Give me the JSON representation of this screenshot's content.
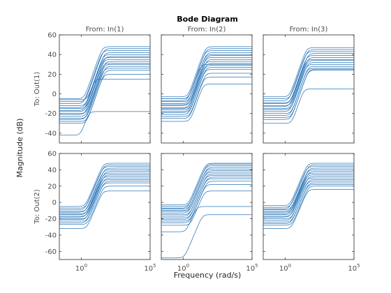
{
  "chart_data": {
    "type": "line",
    "title": "Bode Diagram",
    "xlabel": "Frequency  (rad/s)",
    "ylabel": "Magnitude (dB)",
    "xscale": "log",
    "grid": false,
    "line_color": "#1f6fb4",
    "columns": [
      "From: In(1)",
      "From: In(2)",
      "From: In(3)"
    ],
    "rows": [
      {
        "label": "To: Out(1)",
        "ylim": [
          -50,
          60
        ],
        "yticks": [
          60,
          40,
          20,
          0,
          -20,
          -40
        ]
      },
      {
        "label": "To: Out(2)",
        "ylim": [
          -70,
          60
        ],
        "yticks": [
          60,
          40,
          20,
          0,
          -20,
          -40,
          -60
        ]
      }
    ],
    "xlim_exponent": [
      -1.6,
      5
    ],
    "xticks": [
      {
        "base": "10",
        "exponent": "0",
        "value": 1
      },
      {
        "base": "10",
        "exponent": "5",
        "value": 100000
      }
    ],
    "panels": [
      {
        "row": 0,
        "col": 0,
        "curves": [
          {
            "lo": -5,
            "hi": 48,
            "wc": 1.6
          },
          {
            "lo": -8,
            "hi": 46,
            "wc": 1.9
          },
          {
            "lo": -10,
            "hi": 44,
            "wc": 1.5
          },
          {
            "lo": -12,
            "hi": 42,
            "wc": 2.1
          },
          {
            "lo": -14,
            "hi": 40,
            "wc": 1.8
          },
          {
            "lo": -15,
            "hi": 38,
            "wc": 2.3
          },
          {
            "lo": -17,
            "hi": 37,
            "wc": 1.7
          },
          {
            "lo": -18,
            "hi": 35,
            "wc": 2.0
          },
          {
            "lo": -20,
            "hi": 33,
            "wc": 2.4
          },
          {
            "lo": -21,
            "hi": 31,
            "wc": 1.9
          },
          {
            "lo": -23,
            "hi": 30,
            "wc": 2.2
          },
          {
            "lo": -25,
            "hi": 28,
            "wc": 2.5
          },
          {
            "lo": -26,
            "hi": 26,
            "wc": 2.1
          },
          {
            "lo": -28,
            "hi": 24,
            "wc": 2.6
          },
          {
            "lo": -30,
            "hi": 20,
            "wc": 2.3
          },
          {
            "lo": -6,
            "hi": 15,
            "wc": 2.8
          },
          {
            "lo": -42,
            "hi": -18,
            "wc": 0.9
          }
        ]
      },
      {
        "row": 0,
        "col": 1,
        "curves": [
          {
            "lo": -3,
            "hi": 48,
            "wc": 2.2
          },
          {
            "lo": -5,
            "hi": 46,
            "wc": 2.4
          },
          {
            "lo": -7,
            "hi": 44,
            "wc": 2.1
          },
          {
            "lo": -8,
            "hi": 42,
            "wc": 2.6
          },
          {
            "lo": -10,
            "hi": 40,
            "wc": 2.3
          },
          {
            "lo": -11,
            "hi": 39,
            "wc": 2.7
          },
          {
            "lo": -12,
            "hi": 37,
            "wc": 2.5
          },
          {
            "lo": -14,
            "hi": 35,
            "wc": 2.8
          },
          {
            "lo": -15,
            "hi": 33,
            "wc": 2.4
          },
          {
            "lo": -16,
            "hi": 31,
            "wc": 2.9
          },
          {
            "lo": -18,
            "hi": 29,
            "wc": 2.6
          },
          {
            "lo": -19,
            "hi": 27,
            "wc": 3.0
          },
          {
            "lo": -21,
            "hi": 25,
            "wc": 2.7
          },
          {
            "lo": -23,
            "hi": 21,
            "wc": 3.1
          },
          {
            "lo": -25,
            "hi": 17,
            "wc": 2.9
          },
          {
            "lo": -28,
            "hi": 10,
            "wc": 3.2
          },
          {
            "lo": -5,
            "hi": 30,
            "wc": 2.5
          }
        ]
      },
      {
        "row": 0,
        "col": 2,
        "curves": [
          {
            "lo": -3,
            "hi": 47,
            "wc": 2.0
          },
          {
            "lo": -5,
            "hi": 45,
            "wc": 2.3
          },
          {
            "lo": -7,
            "hi": 43,
            "wc": 1.9
          },
          {
            "lo": -9,
            "hi": 41,
            "wc": 2.5
          },
          {
            "lo": -10,
            "hi": 39,
            "wc": 2.2
          },
          {
            "lo": -12,
            "hi": 37,
            "wc": 2.6
          },
          {
            "lo": -13,
            "hi": 35,
            "wc": 2.1
          },
          {
            "lo": -15,
            "hi": 34,
            "wc": 2.4
          },
          {
            "lo": -16,
            "hi": 32,
            "wc": 2.7
          },
          {
            "lo": -18,
            "hi": 30,
            "wc": 2.3
          },
          {
            "lo": -20,
            "hi": 28,
            "wc": 2.8
          },
          {
            "lo": -22,
            "hi": 26,
            "wc": 2.5
          },
          {
            "lo": -24,
            "hi": 25,
            "wc": 2.9
          },
          {
            "lo": -26,
            "hi": 24,
            "wc": 2.6
          },
          {
            "lo": -30,
            "hi": 5,
            "wc": 3.0
          }
        ]
      },
      {
        "row": 1,
        "col": 0,
        "curves": [
          {
            "lo": -5,
            "hi": 48,
            "wc": 1.9
          },
          {
            "lo": -7,
            "hi": 46,
            "wc": 2.1
          },
          {
            "lo": -9,
            "hi": 44,
            "wc": 1.8
          },
          {
            "lo": -11,
            "hi": 42,
            "wc": 2.3
          },
          {
            "lo": -12,
            "hi": 40,
            "wc": 2.0
          },
          {
            "lo": -14,
            "hi": 38,
            "wc": 2.4
          },
          {
            "lo": -15,
            "hi": 36,
            "wc": 2.2
          },
          {
            "lo": -17,
            "hi": 34,
            "wc": 2.5
          },
          {
            "lo": -18,
            "hi": 32,
            "wc": 2.1
          },
          {
            "lo": -20,
            "hi": 30,
            "wc": 2.6
          },
          {
            "lo": -21,
            "hi": 28,
            "wc": 2.3
          },
          {
            "lo": -23,
            "hi": 26,
            "wc": 2.7
          },
          {
            "lo": -25,
            "hi": 24,
            "wc": 2.4
          },
          {
            "lo": -27,
            "hi": 20,
            "wc": 2.8
          },
          {
            "lo": -32,
            "hi": 14,
            "wc": 2.5
          }
        ]
      },
      {
        "row": 1,
        "col": 1,
        "curves": [
          {
            "lo": -3,
            "hi": 48,
            "wc": 2.3
          },
          {
            "lo": -5,
            "hi": 47,
            "wc": 2.5
          },
          {
            "lo": -7,
            "hi": 45,
            "wc": 2.2
          },
          {
            "lo": -8,
            "hi": 43,
            "wc": 2.7
          },
          {
            "lo": -10,
            "hi": 41,
            "wc": 2.4
          },
          {
            "lo": -11,
            "hi": 39,
            "wc": 2.8
          },
          {
            "lo": -13,
            "hi": 37,
            "wc": 2.5
          },
          {
            "lo": -15,
            "hi": 35,
            "wc": 2.9
          },
          {
            "lo": -17,
            "hi": 33,
            "wc": 2.6
          },
          {
            "lo": -19,
            "hi": 31,
            "wc": 3.0
          },
          {
            "lo": -21,
            "hi": 29,
            "wc": 2.7
          },
          {
            "lo": -23,
            "hi": 26,
            "wc": 3.1
          },
          {
            "lo": -25,
            "hi": 22,
            "wc": 2.8
          },
          {
            "lo": -28,
            "hi": 14,
            "wc": 3.2
          },
          {
            "lo": -36,
            "hi": -5,
            "wc": 1.6
          },
          {
            "lo": -68,
            "hi": -15,
            "wc": 1.2
          }
        ]
      },
      {
        "row": 1,
        "col": 2,
        "curves": [
          {
            "lo": -4,
            "hi": 48,
            "wc": 2.1
          },
          {
            "lo": -6,
            "hi": 46,
            "wc": 2.4
          },
          {
            "lo": -8,
            "hi": 44,
            "wc": 2.0
          },
          {
            "lo": -9,
            "hi": 42,
            "wc": 2.6
          },
          {
            "lo": -11,
            "hi": 40,
            "wc": 2.3
          },
          {
            "lo": -12,
            "hi": 38,
            "wc": 2.7
          },
          {
            "lo": -14,
            "hi": 36,
            "wc": 2.2
          },
          {
            "lo": -15,
            "hi": 34,
            "wc": 2.5
          },
          {
            "lo": -17,
            "hi": 32,
            "wc": 2.8
          },
          {
            "lo": -18,
            "hi": 30,
            "wc": 2.4
          },
          {
            "lo": -20,
            "hi": 28,
            "wc": 2.9
          },
          {
            "lo": -22,
            "hi": 26,
            "wc": 2.6
          },
          {
            "lo": -24,
            "hi": 24,
            "wc": 3.0
          },
          {
            "lo": -26,
            "hi": 22,
            "wc": 2.7
          },
          {
            "lo": -28,
            "hi": 20,
            "wc": 3.1
          },
          {
            "lo": -32,
            "hi": 16,
            "wc": 2.8
          }
        ]
      }
    ]
  }
}
